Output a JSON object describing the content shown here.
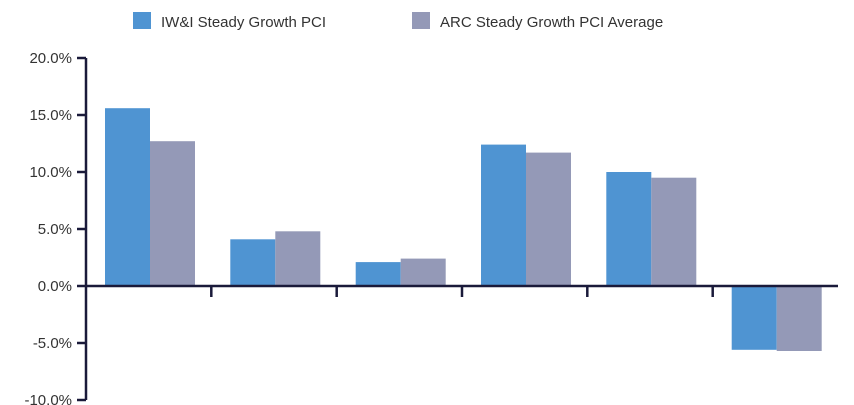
{
  "chart_data": {
    "type": "bar",
    "title": "",
    "xlabel": "",
    "ylabel": "",
    "ylim": [
      -10,
      20
    ],
    "y_ticks": [
      -10,
      -5,
      0,
      5,
      10,
      15,
      20
    ],
    "y_tick_labels": [
      "-10.0%",
      "-5.0%",
      "0.0%",
      "5.0%",
      "10.0%",
      "15.0%",
      "20.0%"
    ],
    "categories": [
      "",
      "",
      "",
      "",
      "",
      ""
    ],
    "series": [
      {
        "name": "IW&I Steady Growth PCI",
        "color": "#4f94d2",
        "values": [
          15.6,
          4.1,
          2.1,
          12.4,
          10.0,
          -5.6
        ]
      },
      {
        "name": "ARC Steady Growth PCI Average",
        "color": "#9499b7",
        "values": [
          12.7,
          4.8,
          2.4,
          11.7,
          9.5,
          -5.7
        ]
      }
    ],
    "legend_position": "top",
    "grid": false
  }
}
